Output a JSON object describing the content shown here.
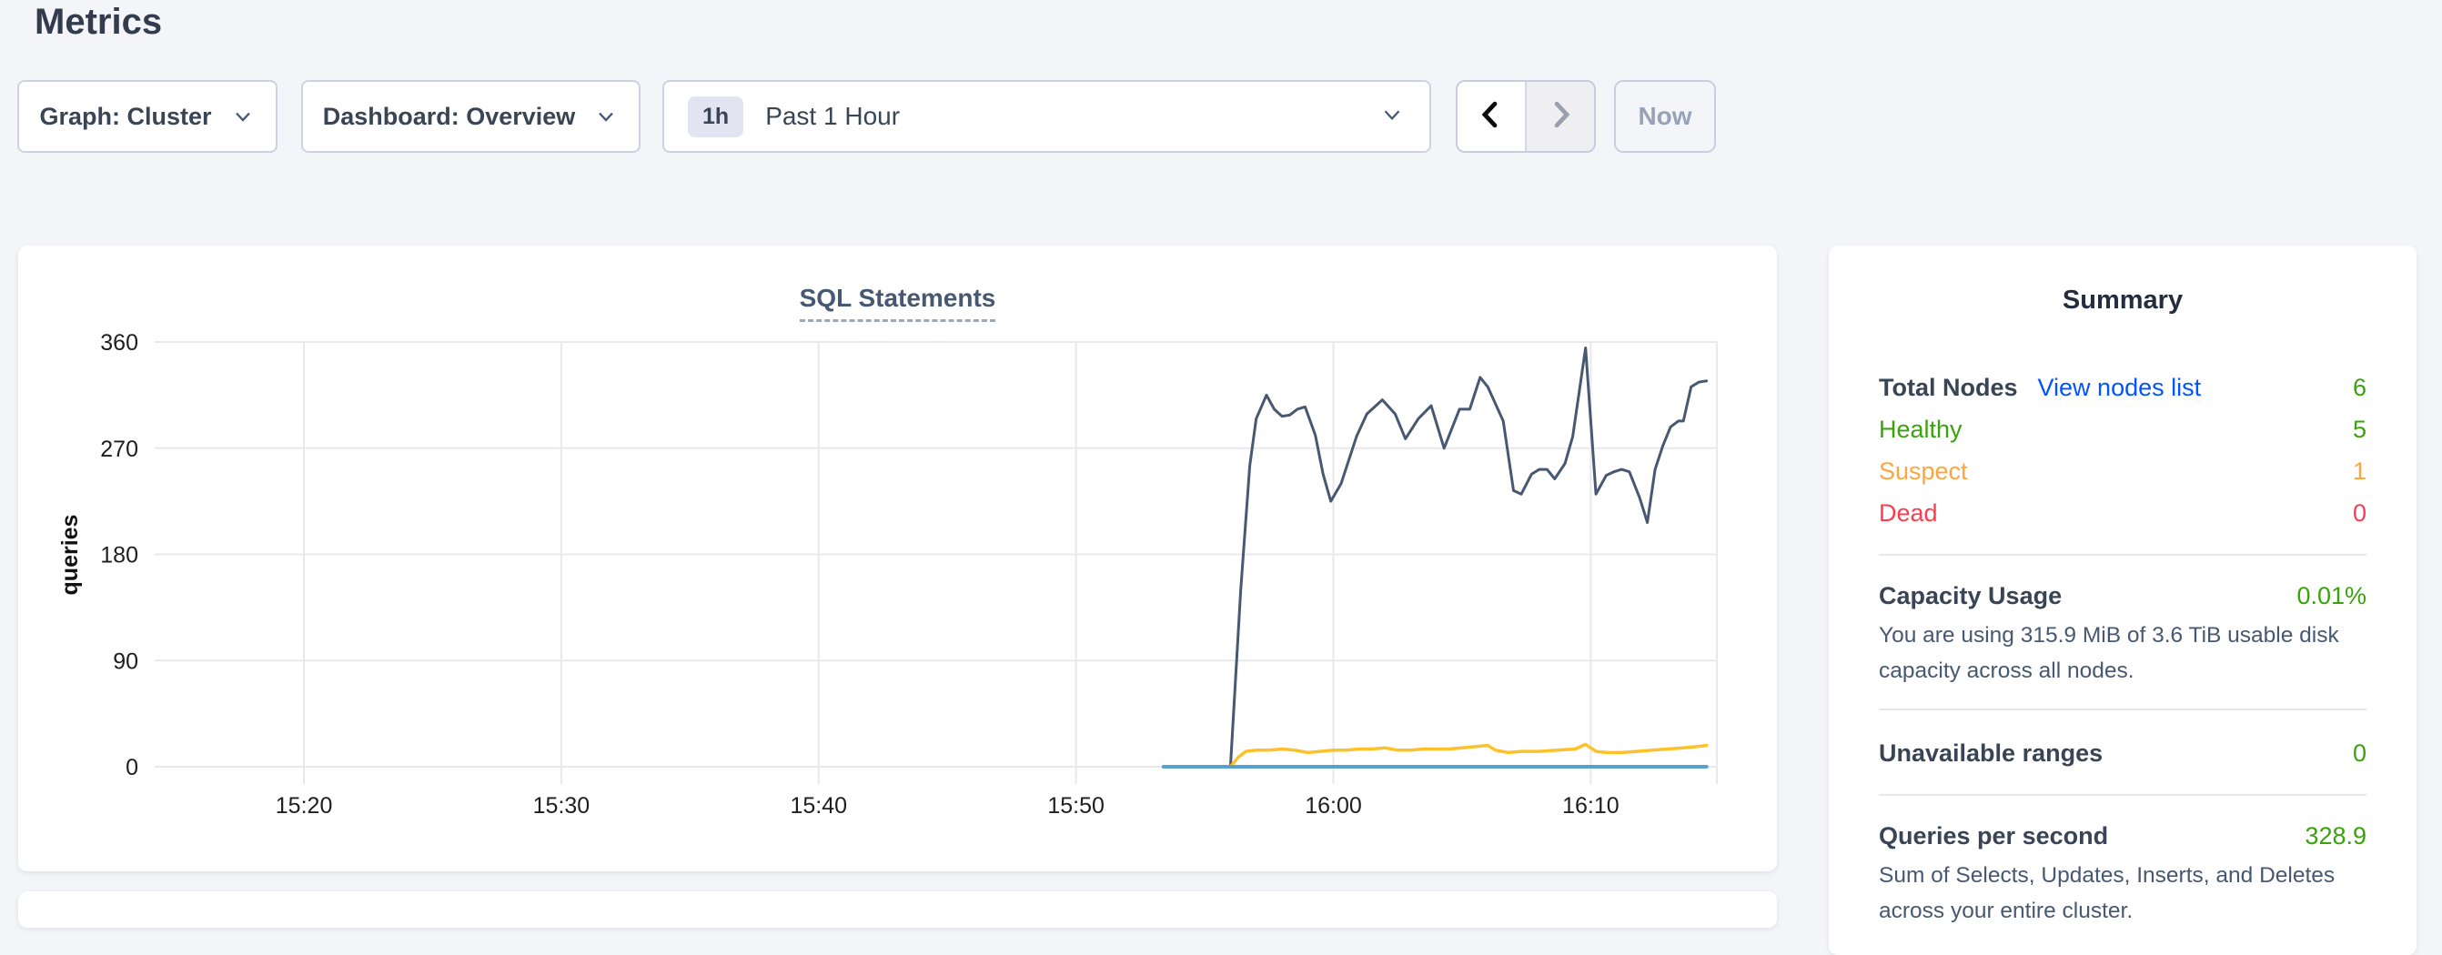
{
  "page": {
    "title": "Metrics"
  },
  "toolbar": {
    "graph_dropdown": {
      "label": "Graph: Cluster",
      "icon": "chevron-down"
    },
    "dashboard_dropdown": {
      "label": "Dashboard: Overview",
      "icon": "chevron-down"
    },
    "time_selector": {
      "badge": "1h",
      "label": "Past 1 Hour",
      "icon": "chevron-down"
    },
    "prev_icon": "chevron-left",
    "next_icon": "chevron-right",
    "now_label": "Now"
  },
  "chart_data": {
    "type": "line",
    "title": "SQL Statements",
    "xlabel": "",
    "ylabel": "queries",
    "x_unit": "minutes after 15:00",
    "xlim": [
      14.2,
      74.9
    ],
    "ylim": [
      0,
      360
    ],
    "yticks": [
      0,
      90,
      180,
      270,
      360
    ],
    "xticks": [
      {
        "minutes": 20,
        "label": "15:20"
      },
      {
        "minutes": 30,
        "label": "15:30"
      },
      {
        "minutes": 40,
        "label": "15:40"
      },
      {
        "minutes": 50,
        "label": "15:50"
      },
      {
        "minutes": 60,
        "label": "16:00"
      },
      {
        "minutes": 70,
        "label": "16:10"
      }
    ],
    "grid": true,
    "legend": "none",
    "series": [
      {
        "name": "navy",
        "color": "#475872",
        "points": [
          [
            56.0,
            0
          ],
          [
            56.4,
            150
          ],
          [
            56.75,
            255
          ],
          [
            57.0,
            295
          ],
          [
            57.4,
            315
          ],
          [
            57.7,
            303
          ],
          [
            58.0,
            297
          ],
          [
            58.3,
            298
          ],
          [
            58.6,
            303
          ],
          [
            58.9,
            305
          ],
          [
            59.3,
            281
          ],
          [
            59.6,
            248
          ],
          [
            59.9,
            225
          ],
          [
            60.3,
            240
          ],
          [
            60.9,
            280
          ],
          [
            61.3,
            299
          ],
          [
            61.9,
            311
          ],
          [
            62.4,
            299
          ],
          [
            62.8,
            278
          ],
          [
            63.3,
            295
          ],
          [
            63.8,
            306
          ],
          [
            64.3,
            270
          ],
          [
            64.9,
            303
          ],
          [
            65.3,
            303
          ],
          [
            65.7,
            330
          ],
          [
            66.0,
            322
          ],
          [
            66.6,
            293
          ],
          [
            67.0,
            234
          ],
          [
            67.3,
            231
          ],
          [
            67.7,
            248
          ],
          [
            68.0,
            252
          ],
          [
            68.3,
            252
          ],
          [
            68.6,
            244
          ],
          [
            69.0,
            257
          ],
          [
            69.3,
            280
          ],
          [
            69.8,
            355
          ],
          [
            70.2,
            231
          ],
          [
            70.6,
            247
          ],
          [
            70.9,
            250
          ],
          [
            71.2,
            252
          ],
          [
            71.5,
            250
          ],
          [
            71.9,
            228
          ],
          [
            72.2,
            207
          ],
          [
            72.5,
            252
          ],
          [
            72.8,
            272
          ],
          [
            73.1,
            288
          ],
          [
            73.4,
            293
          ],
          [
            73.6,
            293
          ],
          [
            73.9,
            322
          ],
          [
            74.2,
            326
          ],
          [
            74.5,
            327
          ]
        ]
      },
      {
        "name": "yellow",
        "color": "#fdc12a",
        "points": [
          [
            56.0,
            0
          ],
          [
            56.3,
            8
          ],
          [
            56.6,
            13
          ],
          [
            57.0,
            14
          ],
          [
            57.5,
            14
          ],
          [
            58.0,
            15
          ],
          [
            58.5,
            14
          ],
          [
            59.0,
            12
          ],
          [
            59.5,
            13
          ],
          [
            60.0,
            14
          ],
          [
            60.5,
            14
          ],
          [
            61.0,
            15
          ],
          [
            61.5,
            15
          ],
          [
            62.0,
            16
          ],
          [
            62.5,
            14
          ],
          [
            63.0,
            14
          ],
          [
            63.5,
            15
          ],
          [
            64.0,
            15
          ],
          [
            64.5,
            15
          ],
          [
            65.0,
            16
          ],
          [
            65.5,
            17
          ],
          [
            66.0,
            18
          ],
          [
            66.3,
            14
          ],
          [
            66.8,
            12
          ],
          [
            67.3,
            13
          ],
          [
            68.0,
            13
          ],
          [
            68.7,
            14
          ],
          [
            69.4,
            15
          ],
          [
            69.8,
            19
          ],
          [
            70.2,
            13
          ],
          [
            70.6,
            12
          ],
          [
            71.2,
            12
          ],
          [
            71.8,
            13
          ],
          [
            72.4,
            14
          ],
          [
            73.0,
            15
          ],
          [
            73.6,
            16
          ],
          [
            74.1,
            17
          ],
          [
            74.5,
            18
          ]
        ]
      },
      {
        "name": "blue",
        "color": "#59a0d2",
        "points": [
          [
            53.4,
            0
          ],
          [
            74.5,
            0
          ]
        ]
      }
    ]
  },
  "summary": {
    "title": "Summary",
    "link_color": "#0055ff",
    "value_color": "#3aa30c",
    "total_nodes": {
      "label": "Total Nodes",
      "link": "View nodes list",
      "value": "6"
    },
    "node_statuses": [
      {
        "label": "Healthy",
        "value": "5",
        "color": "#3aa30c"
      },
      {
        "label": "Suspect",
        "value": "1",
        "color": "#ffa53b"
      },
      {
        "label": "Dead",
        "value": "0",
        "color": "#ff3b4e"
      }
    ],
    "capacity": {
      "label": "Capacity Usage",
      "value": "0.01%",
      "description": "You are using 315.9 MiB of 3.6 TiB usable disk capacity across all nodes."
    },
    "unavailable_ranges": {
      "label": "Unavailable ranges",
      "value": "0"
    },
    "qps": {
      "label": "Queries per second",
      "value": "328.9",
      "description": "Sum of Selects, Updates, Inserts, and Deletes across your entire cluster."
    }
  }
}
